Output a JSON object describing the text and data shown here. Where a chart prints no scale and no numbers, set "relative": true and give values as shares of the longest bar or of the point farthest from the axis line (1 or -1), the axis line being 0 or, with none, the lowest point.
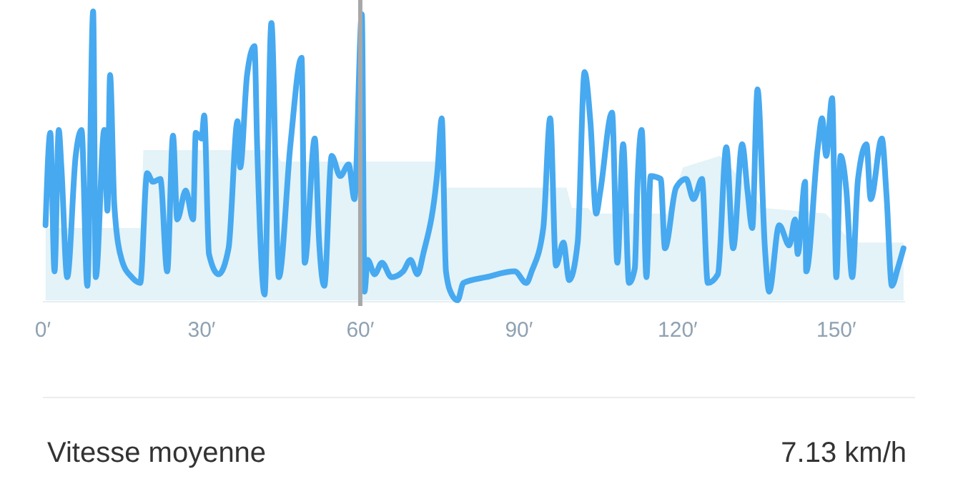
{
  "chart_data": {
    "type": "line",
    "relative": true,
    "xlim": [
      0,
      163
    ],
    "xticks": [
      {
        "value": 0,
        "label": "0′"
      },
      {
        "value": 30,
        "label": "30′"
      },
      {
        "value": 60,
        "label": "60′"
      },
      {
        "value": 90,
        "label": "90′"
      },
      {
        "value": 120,
        "label": "120′"
      },
      {
        "value": 150,
        "label": "150′"
      }
    ],
    "series": [
      {
        "type": "area",
        "color": "#e3f3f8",
        "x": [
          0.5,
          18.5,
          19,
          44,
          45,
          75.4,
          76,
          99,
          100,
          103,
          104,
          118,
          121,
          128,
          133,
          136,
          148,
          153,
          162.7
        ],
        "values": [
          0.25,
          0.25,
          0.52,
          0.52,
          0.48,
          0.48,
          0.39,
          0.39,
          0.32,
          0.32,
          0.3,
          0.3,
          0.46,
          0.5,
          0.4,
          0.32,
          0.3,
          0.2,
          0.2
        ]
      },
      {
        "color": "#47a9f0",
        "x": [
          0.5,
          1.4,
          2.2,
          3.0,
          3.5,
          4.6,
          6.2,
          7.3,
          8.4,
          9.5,
          10.0,
          11.6,
          12.2,
          12.7,
          13.5,
          14.9,
          16.8,
          18.4,
          19.7,
          20.8,
          22.2,
          23.5,
          24.6,
          25.4,
          27.0,
          28.4,
          28.9,
          30.0,
          30.5,
          31.4,
          33.2,
          35.1,
          36.8,
          37.3,
          38.6,
          40.0,
          40.5,
          41.9,
          43.2,
          44.6,
          46.8,
          48.9,
          49.5,
          51.4,
          52.2,
          53.2,
          54.6,
          56.2,
          57.8,
          58.9,
          60.3,
          60.8,
          61.4,
          62.7,
          64.1,
          65.9,
          68.1,
          69.5,
          70.8,
          71.9,
          74.6,
          75.4,
          76.2,
          77.3,
          78.4,
          79.5,
          83.8,
          89.2,
          91.4,
          92.4,
          94.6,
          95.9,
          97.0,
          98.4,
          99.5,
          101.1,
          102.4,
          103.5,
          104.6,
          105.4,
          107.6,
          108.6,
          109.7,
          110.8,
          111.9,
          112.4,
          113.2,
          114.1,
          114.9,
          116.8,
          117.6,
          119.7,
          121.6,
          123.0,
          124.6,
          125.7,
          127.6,
          129.2,
          130.5,
          132.2,
          133.2,
          134.1,
          135.1,
          136.5,
          137.3,
          139.2,
          141.1,
          142.2,
          142.7,
          144.1,
          144.3,
          146.5,
          147.3,
          148.1,
          149.2,
          150.0,
          150.8,
          151.9,
          153.0,
          154.1,
          155.7,
          156.5,
          158.6,
          159.5,
          160.5,
          161.6,
          162.7
        ],
        "values": [
          0.26,
          0.58,
          0.1,
          0.59,
          0.46,
          0.08,
          0.5,
          0.59,
          0.05,
          1.0,
          0.08,
          0.59,
          0.31,
          0.78,
          0.33,
          0.14,
          0.08,
          0.06,
          0.44,
          0.41,
          0.42,
          0.1,
          0.57,
          0.28,
          0.38,
          0.28,
          0.58,
          0.56,
          0.64,
          0.16,
          0.09,
          0.18,
          0.62,
          0.46,
          0.78,
          0.88,
          0.54,
          0.02,
          0.96,
          0.08,
          0.54,
          0.84,
          0.13,
          0.56,
          0.21,
          0.05,
          0.5,
          0.43,
          0.47,
          0.35,
          0.99,
          0.03,
          0.14,
          0.09,
          0.13,
          0.08,
          0.1,
          0.14,
          0.09,
          0.16,
          0.45,
          0.63,
          0.1,
          0.02,
          0.0,
          0.06,
          0.08,
          0.1,
          0.06,
          0.1,
          0.25,
          0.63,
          0.12,
          0.2,
          0.07,
          0.2,
          0.79,
          0.62,
          0.3,
          0.38,
          0.65,
          0.13,
          0.54,
          0.06,
          0.11,
          0.4,
          0.59,
          0.08,
          0.43,
          0.42,
          0.18,
          0.39,
          0.42,
          0.35,
          0.42,
          0.06,
          0.09,
          0.53,
          0.18,
          0.54,
          0.38,
          0.25,
          0.73,
          0.18,
          0.03,
          0.26,
          0.19,
          0.28,
          0.16,
          0.41,
          0.1,
          0.53,
          0.63,
          0.5,
          0.7,
          0.08,
          0.5,
          0.38,
          0.08,
          0.42,
          0.54,
          0.35,
          0.56,
          0.36,
          0.05,
          0.11,
          0.18
        ]
      }
    ],
    "ref_lines": [
      {
        "axis": "x",
        "value": 60,
        "color": "#a8a8a8"
      }
    ],
    "annotations": [
      "Vitesse moyenne",
      "7.13 km/h"
    ]
  }
}
